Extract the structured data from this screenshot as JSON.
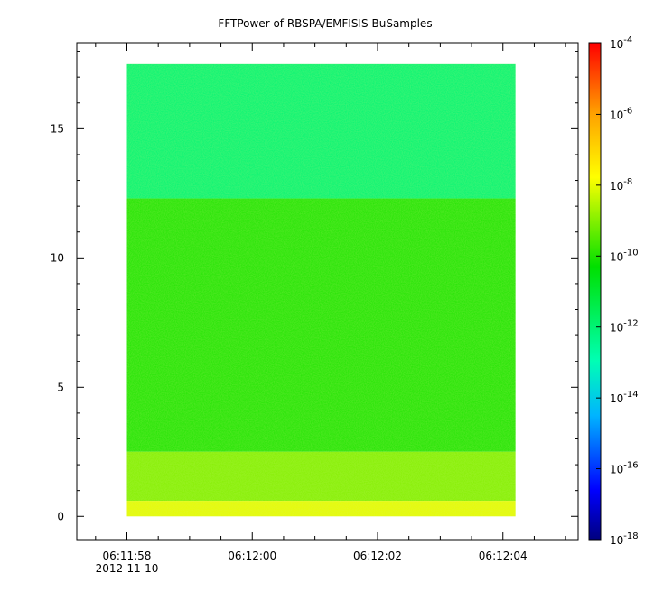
{
  "chart_data": {
    "type": "heatmap",
    "title": "FFTPower of RBSPA/EMFISIS  BuSamples",
    "xlabel": "",
    "ylabel": "",
    "x_tick_labels": [
      "06:11:58",
      "06:12:00",
      "06:12:02",
      "06:12:04"
    ],
    "x_date_label": "2012-11-10",
    "x_range": [
      "06:11:57.2",
      "06:12:05.2"
    ],
    "data_time_range": [
      "06:11:58.0",
      "06:12:04.2"
    ],
    "y_ticks": [
      0,
      5,
      10,
      15
    ],
    "ylim": [
      -0.9,
      18.3
    ],
    "data_y_range": [
      0,
      17.5
    ],
    "colorbar": {
      "scale": "log",
      "range": [
        1e-18,
        0.0001
      ],
      "tick_values": [
        0.0001,
        1e-06,
        1e-08,
        1e-10,
        1e-12,
        1e-14,
        1e-16,
        1e-18
      ],
      "tick_base": "10",
      "tick_exponents": [
        "-4",
        "-6",
        "-8",
        "-10",
        "-12",
        "-14",
        "-16",
        "-18"
      ],
      "colormap": [
        "#00007f",
        "#0000ff",
        "#00b4ff",
        "#00ffb4",
        "#00e000",
        "#ffff00",
        "#ffa000",
        "#ff0000"
      ]
    },
    "regions": [
      {
        "y_range": [
          12.3,
          17.5
        ],
        "level": 1e-12
      },
      {
        "y_range": [
          2.5,
          12.3
        ],
        "level": 1e-10
      },
      {
        "y_range": [
          0.6,
          2.5
        ],
        "level": 1e-09
      },
      {
        "y_range": [
          0,
          0.6
        ],
        "level": 1e-08
      }
    ],
    "grid": false
  }
}
